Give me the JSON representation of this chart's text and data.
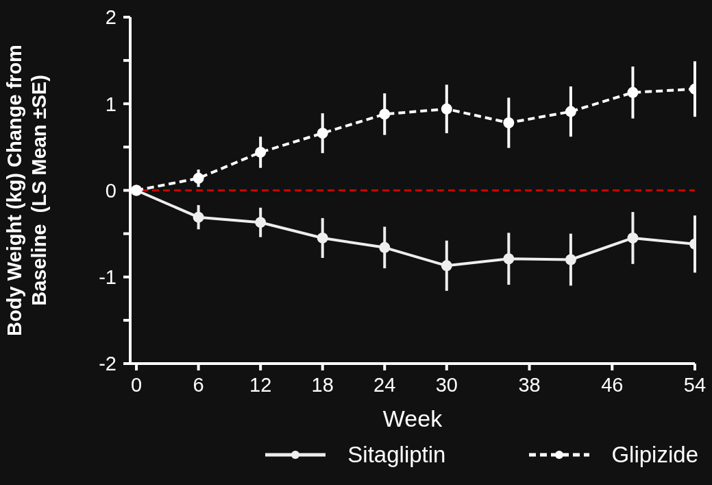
{
  "chart_data": {
    "type": "line",
    "xlabel": "Week",
    "ylabel": "Body Weight (kg) Change from\nBaseline  (LS Mean ±SE)",
    "xlim": [
      -0.6,
      54
    ],
    "xticks": [
      0,
      6,
      12,
      18,
      24,
      30,
      38,
      46,
      54
    ],
    "ylim": [
      -2,
      2
    ],
    "yticks": [
      -2,
      {
        "value": -1.5,
        "label": null
      },
      -1,
      {
        "value": -0.5,
        "label": null
      },
      0,
      {
        "value": 0.5,
        "label": null
      },
      1,
      {
        "value": 1.5,
        "label": null
      },
      2
    ],
    "x": [
      0,
      6,
      12,
      18,
      24,
      30,
      36,
      42,
      48,
      54
    ],
    "series": [
      {
        "name": "Sitagliptin",
        "color": "#eeeeee",
        "line_style": "solid",
        "values": [
          0,
          -0.31,
          -0.37,
          -0.55,
          -0.66,
          -0.87,
          -0.79,
          -0.8,
          -0.55,
          -0.62
        ],
        "errors": [
          null,
          0.14,
          0.17,
          0.23,
          0.24,
          0.29,
          0.3,
          0.3,
          0.3,
          0.33
        ]
      },
      {
        "name": "Glipizide",
        "color": "#ffffff",
        "line_style": "dashed",
        "values": [
          0,
          0.14,
          0.44,
          0.66,
          0.88,
          0.94,
          0.78,
          0.91,
          1.13,
          1.17
        ],
        "errors": [
          null,
          0.1,
          0.18,
          0.23,
          0.24,
          0.28,
          0.29,
          0.29,
          0.3,
          0.32
        ]
      }
    ],
    "ref_lines": [
      {
        "axis": "y",
        "value": 0,
        "color": "#cc0000",
        "line_style": "dashed"
      }
    ],
    "marker": "circle",
    "grid": false,
    "legend": "bottom"
  }
}
